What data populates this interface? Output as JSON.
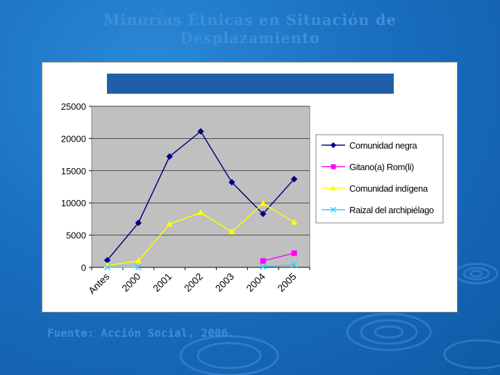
{
  "slide": {
    "title_line1": "Minorías Étnicas en Situación de",
    "title_line2": "Desplazamiento",
    "source": "Fuente: Acción Social, 2006."
  },
  "colors": {
    "plot_background": "#c0c0c0",
    "title_band": "#1f5fa8"
  },
  "chart_data": {
    "type": "line",
    "title": "",
    "xlabel": "",
    "ylabel": "",
    "categories": [
      "Antes",
      "2000",
      "2001",
      "2002",
      "2003",
      "2004",
      "2005"
    ],
    "ylim": [
      0,
      25000
    ],
    "yticks": [
      0,
      5000,
      10000,
      15000,
      20000,
      25000
    ],
    "grid": true,
    "legend_position": "right",
    "series": [
      {
        "name": "Comunidad negra",
        "color": "#000080",
        "marker": "diamond",
        "values": [
          1100,
          6900,
          17200,
          21100,
          13200,
          8300,
          13700
        ]
      },
      {
        "name": "Gitano(a) Rom(li)",
        "color": "#ff00ff",
        "marker": "square",
        "values": [
          null,
          null,
          null,
          null,
          null,
          1000,
          2200
        ]
      },
      {
        "name": "Comunidad indígena",
        "color": "#ffff00",
        "marker": "triangle",
        "values": [
          300,
          1000,
          6700,
          8500,
          5500,
          9900,
          7000
        ]
      },
      {
        "name": "Raizal del archipiélago",
        "color": "#33ccff",
        "marker": "x",
        "values": [
          0,
          0,
          null,
          null,
          null,
          100,
          400
        ]
      }
    ]
  }
}
